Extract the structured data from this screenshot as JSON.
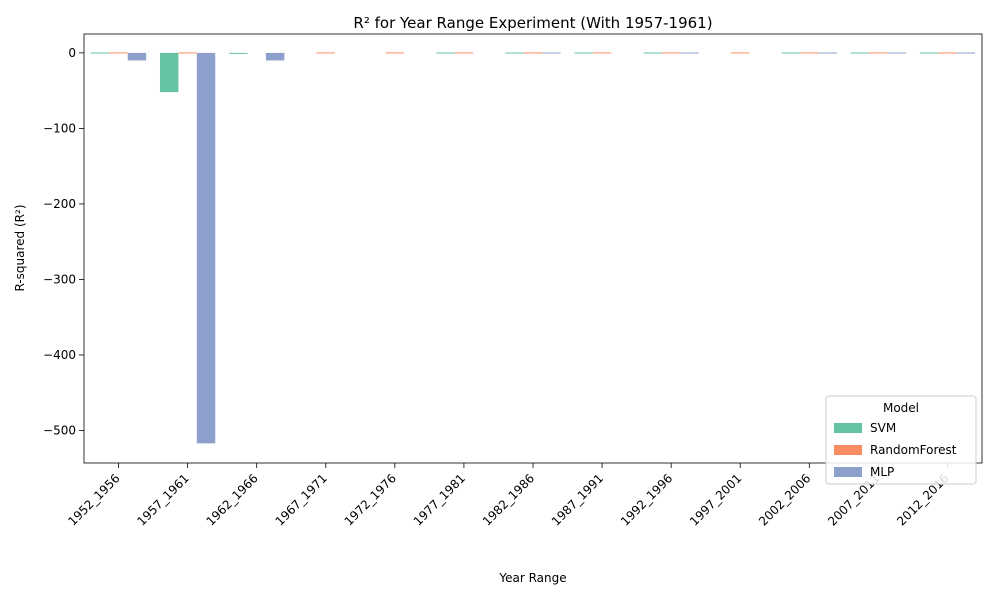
{
  "chart_data": {
    "type": "bar",
    "title": "R² for Year Range Experiment (With 1957-1961)",
    "xlabel": "Year Range",
    "ylabel": "R-squared (R²)",
    "categories": [
      "1952_1956",
      "1957_1961",
      "1962_1966",
      "1967_1971",
      "1972_1976",
      "1977_1981",
      "1982_1986",
      "1987_1991",
      "1992_1996",
      "1997_2001",
      "2002_2006",
      "2007_2011",
      "2012_2016"
    ],
    "series": [
      {
        "name": "SVM",
        "color": "#66c2a5",
        "values": [
          0.5,
          -52,
          -1,
          null,
          null,
          0.5,
          0.5,
          0.5,
          0.5,
          null,
          0.5,
          0.5,
          0.5
        ]
      },
      {
        "name": "RandomForest",
        "color": "#fc8d62",
        "values": [
          0.6,
          0.6,
          null,
          0.6,
          0.6,
          0.6,
          0.6,
          0.6,
          0.6,
          0.6,
          0.6,
          0.6,
          0.6
        ]
      },
      {
        "name": "MLP",
        "color": "#8da0cb",
        "values": [
          -10,
          -517,
          -10,
          null,
          null,
          null,
          0.5,
          null,
          0.5,
          null,
          0.5,
          0.5,
          0.5
        ]
      }
    ],
    "yticks": [
      0,
      -100,
      -200,
      -300,
      -400,
      -500
    ],
    "ylim": [
      -543,
      25
    ],
    "legend": {
      "title": "Model",
      "position": "lower-right"
    },
    "grid": false
  }
}
